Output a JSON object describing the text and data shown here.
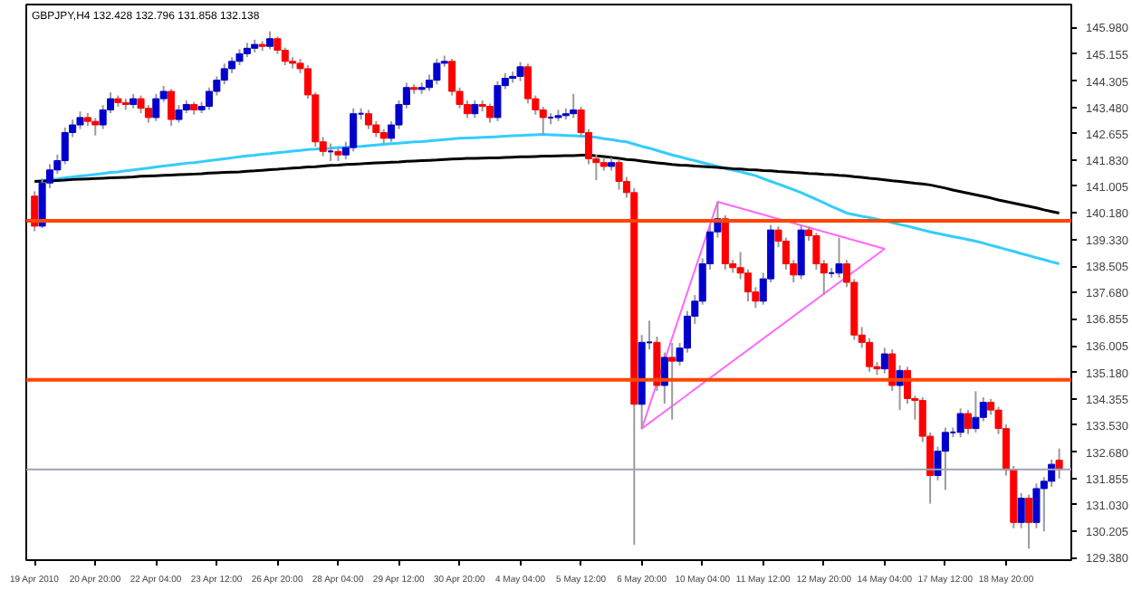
{
  "chart_data": {
    "type": "candlestick",
    "title": "GBPJPY,H4 132.428 132.796 131.858 132.138",
    "categories": [
      "19 Apr 2010",
      null,
      null,
      null,
      null,
      null,
      null,
      null,
      "20 Apr 20:00",
      null,
      null,
      null,
      null,
      null,
      null,
      null,
      "22 Apr 04:00",
      null,
      null,
      null,
      null,
      null,
      null,
      null,
      "23 Apr 12:00",
      null,
      null,
      null,
      null,
      null,
      null,
      null,
      "26 Apr 20:00",
      null,
      null,
      null,
      null,
      null,
      null,
      null,
      "28 Apr 04:00",
      null,
      null,
      null,
      null,
      null,
      null,
      null,
      "29 Apr 12:00",
      null,
      null,
      null,
      null,
      null,
      null,
      null,
      "30 Apr 20:00",
      null,
      null,
      null,
      null,
      null,
      null,
      null,
      "4 May 04:00",
      null,
      null,
      null,
      null,
      null,
      null,
      null,
      "5 May 12:00",
      null,
      null,
      null,
      null,
      null,
      null,
      null,
      "6 May 20:00",
      null,
      null,
      null,
      null,
      null,
      null,
      null,
      "10 May 04:00",
      null,
      null,
      null,
      null,
      null,
      null,
      null,
      "11 May 12:00",
      null,
      null,
      null,
      null,
      null,
      null,
      null,
      "12 May 20:00",
      null,
      null,
      null,
      null,
      null,
      null,
      null,
      "14 May 04:00",
      null,
      null,
      null,
      null,
      null,
      null,
      null,
      "17 May 12:00",
      null,
      null,
      null,
      null,
      null,
      null,
      null,
      "18 May 20:00",
      null,
      null,
      null,
      null,
      null,
      null,
      null
    ],
    "ohlc": [
      [
        140.7,
        140.85,
        139.6,
        139.76
      ],
      [
        139.76,
        141.25,
        139.7,
        141.11
      ],
      [
        141.11,
        141.7,
        140.95,
        141.52
      ],
      [
        141.52,
        142.0,
        141.4,
        141.81
      ],
      [
        141.81,
        142.85,
        141.7,
        142.69
      ],
      [
        142.69,
        143.1,
        142.55,
        142.93
      ],
      [
        142.93,
        143.35,
        142.8,
        143.16
      ],
      [
        143.16,
        143.3,
        142.9,
        143.04
      ],
      [
        143.04,
        143.15,
        142.6,
        142.93
      ],
      [
        142.93,
        143.55,
        142.8,
        143.4
      ],
      [
        143.4,
        143.95,
        143.3,
        143.75
      ],
      [
        143.75,
        143.85,
        143.5,
        143.63
      ],
      [
        143.63,
        143.75,
        143.4,
        143.57
      ],
      [
        143.57,
        143.9,
        143.45,
        143.75
      ],
      [
        143.75,
        143.85,
        143.3,
        143.45
      ],
      [
        143.45,
        143.55,
        143.0,
        143.16
      ],
      [
        143.16,
        143.9,
        143.05,
        143.75
      ],
      [
        143.75,
        144.15,
        143.65,
        143.98
      ],
      [
        143.98,
        144.05,
        142.9,
        143.1
      ],
      [
        143.1,
        143.55,
        143.0,
        143.4
      ],
      [
        143.4,
        143.7,
        143.3,
        143.57
      ],
      [
        143.57,
        143.65,
        143.25,
        143.4
      ],
      [
        143.4,
        143.65,
        143.3,
        143.51
      ],
      [
        143.51,
        144.1,
        143.4,
        143.98
      ],
      [
        143.98,
        144.45,
        143.85,
        144.33
      ],
      [
        144.33,
        144.85,
        144.2,
        144.69
      ],
      [
        144.69,
        145.05,
        144.55,
        144.92
      ],
      [
        144.92,
        145.3,
        144.8,
        145.16
      ],
      [
        145.16,
        145.5,
        145.05,
        145.33
      ],
      [
        145.33,
        145.6,
        145.2,
        145.45
      ],
      [
        145.45,
        145.55,
        145.25,
        145.39
      ],
      [
        145.39,
        145.86,
        145.3,
        145.63
      ],
      [
        145.63,
        145.7,
        145.15,
        145.27
      ],
      [
        145.27,
        145.35,
        144.8,
        144.92
      ],
      [
        144.92,
        145.05,
        144.7,
        144.86
      ],
      [
        144.86,
        145.0,
        144.55,
        144.69
      ],
      [
        144.69,
        144.8,
        143.75,
        143.87
      ],
      [
        143.87,
        143.95,
        142.25,
        142.4
      ],
      [
        142.4,
        142.55,
        141.95,
        142.1
      ],
      [
        142.1,
        142.35,
        141.8,
        142.1
      ],
      [
        142.1,
        142.2,
        141.8,
        141.99
      ],
      [
        141.99,
        142.4,
        141.85,
        142.22
      ],
      [
        142.22,
        143.45,
        142.1,
        143.28
      ],
      [
        143.28,
        143.45,
        143.1,
        143.28
      ],
      [
        143.28,
        143.4,
        142.8,
        142.93
      ],
      [
        142.93,
        143.05,
        142.55,
        142.69
      ],
      [
        142.69,
        142.8,
        142.35,
        142.51
      ],
      [
        142.51,
        143.05,
        142.4,
        142.93
      ],
      [
        142.93,
        143.7,
        142.8,
        143.57
      ],
      [
        143.57,
        144.25,
        143.45,
        144.1
      ],
      [
        144.1,
        144.2,
        143.9,
        144.04
      ],
      [
        144.04,
        144.25,
        143.9,
        144.1
      ],
      [
        144.1,
        144.5,
        144.0,
        144.33
      ],
      [
        144.33,
        145.0,
        144.2,
        144.86
      ],
      [
        144.86,
        145.1,
        144.75,
        144.92
      ],
      [
        144.92,
        145.0,
        143.85,
        143.98
      ],
      [
        143.98,
        144.1,
        143.45,
        143.57
      ],
      [
        143.57,
        143.7,
        143.15,
        143.28
      ],
      [
        143.28,
        143.7,
        143.15,
        143.57
      ],
      [
        143.57,
        143.7,
        143.35,
        143.51
      ],
      [
        143.51,
        143.6,
        143.0,
        143.16
      ],
      [
        143.16,
        144.3,
        143.05,
        144.16
      ],
      [
        144.16,
        144.55,
        144.05,
        144.39
      ],
      [
        144.39,
        144.6,
        144.25,
        144.45
      ],
      [
        144.45,
        144.9,
        144.3,
        144.75
      ],
      [
        144.75,
        144.85,
        143.6,
        143.75
      ],
      [
        143.75,
        143.85,
        143.25,
        143.4
      ],
      [
        143.4,
        143.5,
        142.6,
        143.16
      ],
      [
        143.16,
        143.3,
        142.95,
        143.16
      ],
      [
        143.16,
        143.4,
        143.05,
        143.22
      ],
      [
        143.22,
        143.45,
        143.1,
        143.28
      ],
      [
        143.28,
        143.9,
        143.15,
        143.4
      ],
      [
        143.4,
        143.5,
        142.55,
        142.69
      ],
      [
        142.69,
        142.8,
        141.7,
        141.87
      ],
      [
        141.87,
        142.0,
        141.2,
        141.75
      ],
      [
        141.75,
        141.9,
        141.5,
        141.63
      ],
      [
        141.63,
        141.9,
        141.5,
        141.75
      ],
      [
        141.75,
        141.85,
        140.9,
        141.16
      ],
      [
        141.16,
        141.3,
        140.65,
        140.81
      ],
      [
        140.81,
        140.95,
        129.78,
        134.18
      ],
      [
        134.18,
        136.35,
        133.4,
        136.12
      ],
      [
        136.12,
        136.8,
        135.9,
        136.12
      ],
      [
        136.12,
        136.3,
        134.6,
        134.77
      ],
      [
        134.77,
        135.8,
        134.2,
        135.65
      ],
      [
        135.65,
        136.1,
        133.7,
        135.53
      ],
      [
        135.53,
        136.1,
        135.4,
        135.94
      ],
      [
        135.94,
        137.1,
        135.8,
        136.94
      ],
      [
        136.94,
        137.6,
        136.7,
        137.41
      ],
      [
        137.41,
        138.75,
        137.3,
        138.58
      ],
      [
        138.58,
        139.8,
        138.4,
        139.58
      ],
      [
        139.58,
        140.52,
        139.4,
        139.99
      ],
      [
        139.99,
        140.1,
        138.4,
        138.58
      ],
      [
        138.58,
        138.7,
        138.3,
        138.46
      ],
      [
        138.46,
        138.95,
        138.1,
        138.29
      ],
      [
        138.29,
        138.4,
        137.4,
        137.7
      ],
      [
        137.7,
        137.85,
        137.2,
        137.41
      ],
      [
        137.41,
        138.3,
        137.3,
        138.11
      ],
      [
        138.11,
        139.8,
        138.0,
        139.64
      ],
      [
        139.64,
        139.75,
        139.1,
        139.29
      ],
      [
        139.29,
        139.4,
        138.4,
        138.58
      ],
      [
        138.58,
        138.7,
        138.0,
        138.23
      ],
      [
        138.23,
        139.8,
        138.1,
        139.64
      ],
      [
        139.64,
        139.75,
        139.3,
        139.46
      ],
      [
        139.46,
        139.55,
        138.4,
        138.58
      ],
      [
        138.58,
        138.7,
        137.6,
        138.29
      ],
      [
        138.29,
        138.45,
        138.15,
        138.29
      ],
      [
        138.29,
        139.4,
        138.15,
        138.58
      ],
      [
        138.58,
        138.7,
        137.85,
        138.0
      ],
      [
        138.0,
        138.1,
        136.2,
        136.35
      ],
      [
        136.35,
        136.6,
        135.95,
        136.12
      ],
      [
        136.12,
        136.25,
        135.2,
        135.36
      ],
      [
        135.36,
        135.5,
        135.1,
        135.29
      ],
      [
        135.29,
        135.95,
        135.15,
        135.76
      ],
      [
        135.76,
        135.9,
        134.6,
        134.77
      ],
      [
        134.77,
        135.4,
        134.0,
        135.24
      ],
      [
        135.24,
        135.35,
        134.2,
        134.36
      ],
      [
        134.36,
        134.45,
        133.7,
        134.3
      ],
      [
        134.3,
        134.4,
        133.0,
        133.18
      ],
      [
        133.18,
        133.3,
        131.07,
        131.95
      ],
      [
        131.95,
        132.85,
        131.8,
        132.71
      ],
      [
        132.71,
        133.45,
        131.5,
        133.3
      ],
      [
        133.3,
        133.45,
        133.15,
        133.3
      ],
      [
        133.3,
        134.05,
        133.15,
        133.89
      ],
      [
        133.89,
        134.0,
        133.25,
        133.42
      ],
      [
        133.42,
        134.59,
        133.3,
        133.77
      ],
      [
        133.77,
        134.4,
        133.65,
        134.24
      ],
      [
        134.24,
        134.35,
        133.85,
        134.0
      ],
      [
        134.0,
        134.1,
        133.25,
        133.42
      ],
      [
        133.42,
        133.55,
        131.95,
        132.13
      ],
      [
        132.13,
        132.25,
        130.3,
        130.48
      ],
      [
        130.48,
        131.4,
        130.3,
        131.24
      ],
      [
        131.24,
        131.35,
        129.66,
        130.48
      ],
      [
        130.48,
        131.7,
        130.3,
        131.54
      ],
      [
        131.54,
        131.9,
        130.2,
        131.77
      ],
      [
        131.77,
        132.45,
        131.6,
        132.3
      ],
      [
        132.428,
        132.796,
        131.858,
        132.138
      ]
    ],
    "colors": [
      "#ff0000",
      "#0000cc",
      "#0000cc",
      "#0000cc",
      "#0000cc",
      "#0000cc",
      "#0000cc",
      "#ff0000",
      "#ff0000",
      "#0000cc",
      "#0000cc",
      "#ff0000",
      "#ff0000",
      "#0000cc",
      "#ff0000",
      "#ff0000",
      "#0000cc",
      "#0000cc",
      "#ff0000",
      "#0000cc",
      "#0000cc",
      "#ff0000",
      "#0000cc",
      "#0000cc",
      "#0000cc",
      "#0000cc",
      "#0000cc",
      "#0000cc",
      "#0000cc",
      "#0000cc",
      "#ff0000",
      "#0000cc",
      "#ff0000",
      "#ff0000",
      "#ff0000",
      "#ff0000",
      "#ff0000",
      "#ff0000",
      "#ff0000",
      "#0000cc",
      "#ff0000",
      "#0000cc",
      "#0000cc",
      "#0000cc",
      "#ff0000",
      "#ff0000",
      "#ff0000",
      "#0000cc",
      "#0000cc",
      "#0000cc",
      "#ff0000",
      "#0000cc",
      "#0000cc",
      "#0000cc",
      "#0000cc",
      "#ff0000",
      "#ff0000",
      "#ff0000",
      "#0000cc",
      "#ff0000",
      "#ff0000",
      "#0000cc",
      "#0000cc",
      "#0000cc",
      "#0000cc",
      "#ff0000",
      "#ff0000",
      "#ff0000",
      "#0000cc",
      "#0000cc",
      "#0000cc",
      "#0000cc",
      "#ff0000",
      "#ff0000",
      "#ff0000",
      "#ff0000",
      "#0000cc",
      "#ff0000",
      "#ff0000",
      "#ff0000",
      "#0000cc",
      "#0000cc",
      "#ff0000",
      "#0000cc",
      "#ff0000",
      "#0000cc",
      "#0000cc",
      "#0000cc",
      "#0000cc",
      "#0000cc",
      "#0000cc",
      "#ff0000",
      "#ff0000",
      "#ff0000",
      "#ff0000",
      "#ff0000",
      "#0000cc",
      "#0000cc",
      "#ff0000",
      "#ff0000",
      "#ff0000",
      "#0000cc",
      "#ff0000",
      "#ff0000",
      "#ff0000",
      "#0000cc",
      "#0000cc",
      "#ff0000",
      "#ff0000",
      "#ff0000",
      "#ff0000",
      "#ff0000",
      "#0000cc",
      "#ff0000",
      "#0000cc",
      "#ff0000",
      "#ff0000",
      "#ff0000",
      "#ff0000",
      "#0000cc",
      "#0000cc",
      "#0000cc",
      "#0000cc",
      "#ff0000",
      "#0000cc",
      "#0000cc",
      "#ff0000",
      "#ff0000",
      "#ff0000",
      "#ff0000",
      "#0000cc",
      "#ff0000",
      "#0000cc",
      "#0000cc",
      "#0000cc",
      "#ff0000"
    ],
    "series": [
      {
        "type": "line",
        "color": "#33ccff",
        "values": [
          141.16,
          141.19,
          141.22,
          141.24,
          141.27,
          141.3,
          141.33,
          141.35,
          141.38,
          141.41,
          141.44,
          141.46,
          141.49,
          141.52,
          141.55,
          141.58,
          141.61,
          141.64,
          141.67,
          141.7,
          141.73,
          141.75,
          141.78,
          141.81,
          141.84,
          141.87,
          141.9,
          141.93,
          141.96,
          141.98,
          142.01,
          142.03,
          142.06,
          142.08,
          142.11,
          142.13,
          142.16,
          142.17,
          142.19,
          142.2,
          142.22,
          142.23,
          142.25,
          142.26,
          142.28,
          142.3,
          142.32,
          142.34,
          142.36,
          142.38,
          142.4,
          142.41,
          142.43,
          142.45,
          142.47,
          142.49,
          142.51,
          142.52,
          142.53,
          142.54,
          142.55,
          142.56,
          142.58,
          142.59,
          142.6,
          142.61,
          142.62,
          142.63,
          142.62,
          142.61,
          142.6,
          142.59,
          142.58,
          142.57,
          142.54,
          142.5,
          142.47,
          142.43,
          142.4,
          142.33,
          142.26,
          142.2,
          142.13,
          142.06,
          141.99,
          141.93,
          141.87,
          141.81,
          141.75,
          141.69,
          141.63,
          141.57,
          141.51,
          141.46,
          141.4,
          141.34,
          141.25,
          141.16,
          141.08,
          140.99,
          140.9,
          140.81,
          140.7,
          140.6,
          140.49,
          140.38,
          140.28,
          140.17,
          140.12,
          140.07,
          140.03,
          139.98,
          139.93,
          139.87,
          139.81,
          139.76,
          139.7,
          139.64,
          139.58,
          139.53,
          139.48,
          139.43,
          139.39,
          139.34,
          139.29,
          139.23,
          139.16,
          139.1,
          139.03,
          138.97,
          138.9,
          138.84,
          138.77,
          138.71,
          138.64,
          138.58
        ]
      },
      {
        "type": "line",
        "color": "#000000",
        "values": [
          141.16,
          141.17,
          141.18,
          141.19,
          141.2,
          141.22,
          141.23,
          141.24,
          141.25,
          141.26,
          141.27,
          141.28,
          141.29,
          141.3,
          141.32,
          141.33,
          141.34,
          141.35,
          141.36,
          141.37,
          141.38,
          141.39,
          141.4,
          141.42,
          141.43,
          141.44,
          141.45,
          141.46,
          141.48,
          141.49,
          141.51,
          141.53,
          141.54,
          141.56,
          141.58,
          141.59,
          141.61,
          141.62,
          141.64,
          141.66,
          141.67,
          141.69,
          141.7,
          141.71,
          141.73,
          141.74,
          141.75,
          141.76,
          141.77,
          141.79,
          141.8,
          141.81,
          141.82,
          141.83,
          141.85,
          141.86,
          141.87,
          141.88,
          141.88,
          141.89,
          141.9,
          141.9,
          141.91,
          141.92,
          141.93,
          141.93,
          141.94,
          141.95,
          141.95,
          141.96,
          141.97,
          141.97,
          141.98,
          141.99,
          141.96,
          141.94,
          141.91,
          141.88,
          141.85,
          141.83,
          141.8,
          141.77,
          141.74,
          141.72,
          141.69,
          141.67,
          141.66,
          141.64,
          141.63,
          141.61,
          141.6,
          141.58,
          141.56,
          141.55,
          141.53,
          141.52,
          141.5,
          141.49,
          141.47,
          141.46,
          141.44,
          141.43,
          141.41,
          141.4,
          141.38,
          141.37,
          141.35,
          141.34,
          141.31,
          141.29,
          141.26,
          141.24,
          141.21,
          141.18,
          141.16,
          141.13,
          141.1,
          141.08,
          141.05,
          141.0,
          140.95,
          140.89,
          140.84,
          140.79,
          140.74,
          140.69,
          140.64,
          140.58,
          140.53,
          140.48,
          140.43,
          140.38,
          140.33,
          140.27,
          140.22,
          140.17
        ]
      },
      {
        "type": "line",
        "color": "#ff66ff",
        "values": [
          null,
          null,
          null,
          null,
          null,
          null,
          null,
          null,
          null,
          null,
          null,
          null,
          null,
          null,
          null,
          null,
          null,
          null,
          null,
          null,
          null,
          null,
          null,
          null,
          null,
          null,
          null,
          null,
          null,
          null,
          null,
          null,
          null,
          null,
          null,
          null,
          null,
          null,
          null,
          null,
          null,
          null,
          null,
          null,
          null,
          null,
          null,
          null,
          null,
          null,
          null,
          null,
          null,
          null,
          null,
          null,
          null,
          null,
          null,
          null,
          null,
          null,
          null,
          null,
          null,
          null,
          null,
          null,
          null,
          null,
          null,
          null,
          null,
          null,
          null,
          null,
          null,
          null,
          null,
          null,
          133.42,
          null,
          null,
          null,
          null,
          null,
          null,
          null,
          null,
          null,
          140.52,
          null,
          null,
          null,
          null,
          null,
          null,
          null,
          null,
          null,
          null,
          null,
          null,
          null,
          null,
          null,
          null,
          null,
          null,
          null,
          null,
          null,
          139.05,
          null,
          null,
          null,
          null,
          null,
          null,
          null,
          null,
          null,
          null,
          null,
          null,
          null,
          null,
          null,
          null,
          null,
          null,
          null,
          null,
          null,
          null,
          null
        ]
      },
      {
        "type": "line",
        "color": "#ff66ff",
        "values": [
          null,
          null,
          null,
          null,
          null,
          null,
          null,
          null,
          null,
          null,
          null,
          null,
          null,
          null,
          null,
          null,
          null,
          null,
          null,
          null,
          null,
          null,
          null,
          null,
          null,
          null,
          null,
          null,
          null,
          null,
          null,
          null,
          null,
          null,
          null,
          null,
          null,
          null,
          null,
          null,
          null,
          null,
          null,
          null,
          null,
          null,
          null,
          null,
          null,
          null,
          null,
          null,
          null,
          null,
          null,
          null,
          null,
          null,
          null,
          null,
          null,
          null,
          null,
          null,
          null,
          null,
          null,
          null,
          null,
          null,
          null,
          null,
          null,
          null,
          null,
          null,
          null,
          null,
          null,
          null,
          133.42,
          null,
          null,
          null,
          null,
          null,
          null,
          null,
          null,
          null,
          null,
          null,
          null,
          null,
          null,
          null,
          null,
          null,
          null,
          null,
          null,
          null,
          null,
          null,
          null,
          null,
          null,
          null,
          null,
          null,
          null,
          null,
          139.05,
          null,
          null,
          null,
          null,
          null,
          null,
          null,
          null,
          null,
          null,
          null,
          null,
          null,
          null,
          null,
          null,
          null,
          null,
          null,
          null,
          null,
          null,
          null
        ]
      }
    ],
    "ref_lines": [
      {
        "axis": "y",
        "value": 139.93,
        "color": "#ff4500"
      },
      {
        "axis": "y",
        "value": 134.95,
        "color": "#ff4500"
      },
      {
        "axis": "y",
        "value": 132.138,
        "color": "#a0a0b4"
      }
    ],
    "ylim": [
      129.3,
      146.7
    ],
    "yticks": [
      {
        "value": 145.98,
        "label": "145.980"
      },
      {
        "value": 145.155,
        "label": "145.155"
      },
      {
        "value": 144.305,
        "label": "144.305"
      },
      {
        "value": 143.48,
        "label": "143.480"
      },
      {
        "value": 142.655,
        "label": "142.655"
      },
      {
        "value": 141.83,
        "label": "141.830"
      },
      {
        "value": 141.005,
        "label": "141.005"
      },
      {
        "value": 140.18,
        "label": "140.180"
      },
      {
        "value": 139.33,
        "label": "139.330"
      },
      {
        "value": 138.505,
        "label": "138.505"
      },
      {
        "value": 137.68,
        "label": "137.680"
      },
      {
        "value": 136.855,
        "label": "136.855"
      },
      {
        "value": 136.005,
        "label": "136.005"
      },
      {
        "value": 135.18,
        "label": "135.180"
      },
      {
        "value": 134.355,
        "label": "134.355"
      },
      {
        "value": 133.53,
        "label": "133.530"
      },
      {
        "value": 132.68,
        "label": "132.680"
      },
      {
        "value": 131.855,
        "label": "131.855"
      },
      {
        "value": 131.03,
        "label": "131.030"
      },
      {
        "value": 130.205,
        "label": "130.205"
      },
      {
        "value": 129.38,
        "label": "129.380"
      }
    ],
    "grid": false
  }
}
